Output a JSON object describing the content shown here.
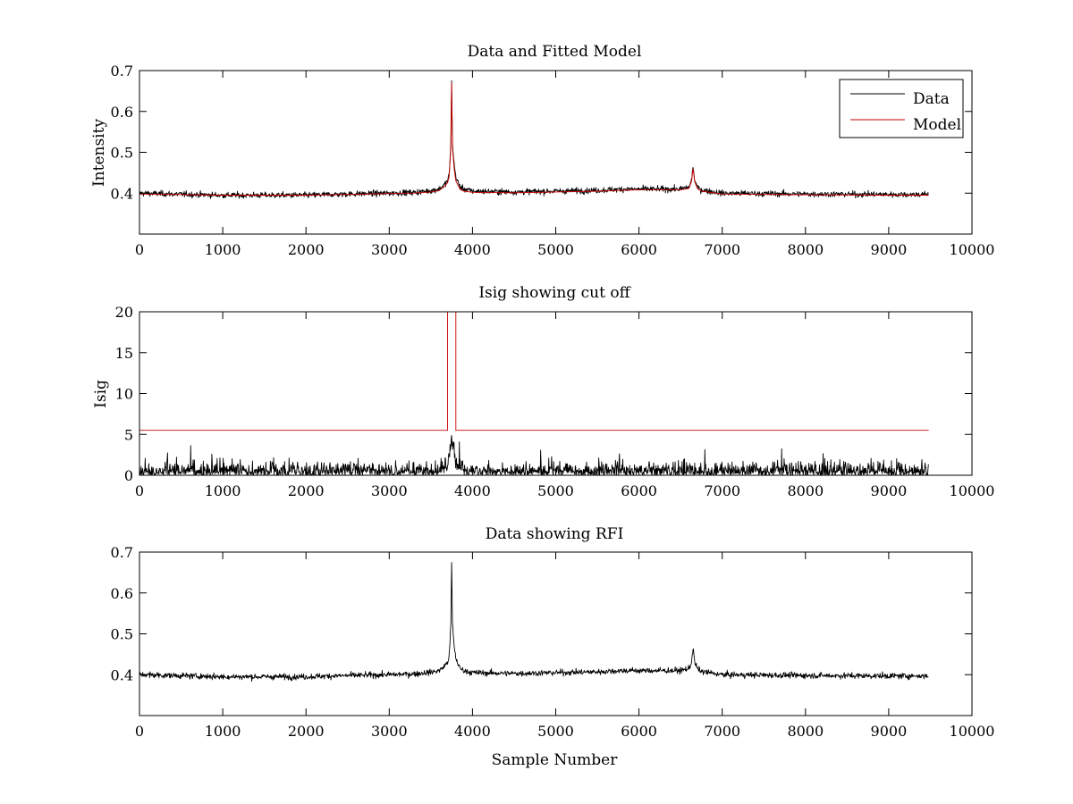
{
  "colors": {
    "data": "#000000",
    "model": "#cc0000",
    "background": "#ffffff"
  },
  "chart_data": [
    {
      "id": "top",
      "type": "line",
      "title": "Data and Fitted Model",
      "xlabel": "",
      "ylabel": "Intensity",
      "xlim": [
        0,
        10000
      ],
      "ylim": [
        0.3,
        0.7
      ],
      "x_ticks": [
        "0",
        "1000",
        "2000",
        "3000",
        "4000",
        "5000",
        "6000",
        "7000",
        "8000",
        "9000",
        "10000"
      ],
      "y_ticks": [
        "0.4",
        "0.5",
        "0.6",
        "0.7"
      ],
      "legend": {
        "position": "top-right",
        "entries": [
          "Data",
          "Model"
        ]
      },
      "series": [
        {
          "name": "Data",
          "color": "#000000",
          "noisy": true,
          "noise_amplitude": 0.006,
          "x": [
            0,
            1000,
            2000,
            2300,
            3000,
            3300,
            3500,
            3600,
            3650,
            3700,
            3720,
            3740,
            3750,
            3760,
            3780,
            3800,
            3850,
            3900,
            4000,
            4500,
            5000,
            5500,
            5800,
            6000,
            6300,
            6500,
            6600,
            6630,
            6650,
            6670,
            6700,
            6750,
            7000,
            8000,
            9000,
            9480
          ],
          "y": [
            0.4,
            0.395,
            0.395,
            0.397,
            0.4,
            0.402,
            0.406,
            0.41,
            0.418,
            0.43,
            0.445,
            0.52,
            0.68,
            0.52,
            0.47,
            0.44,
            0.415,
            0.41,
            0.405,
            0.403,
            0.405,
            0.407,
            0.41,
            0.41,
            0.41,
            0.41,
            0.415,
            0.43,
            0.465,
            0.43,
            0.415,
            0.408,
            0.4,
            0.398,
            0.397,
            0.397
          ]
        },
        {
          "name": "Model",
          "color": "#cc0000",
          "noisy": false,
          "x": [
            0,
            1000,
            2000,
            2300,
            3000,
            3300,
            3500,
            3600,
            3650,
            3700,
            3720,
            3740,
            3750,
            3760,
            3780,
            3800,
            3850,
            3900,
            4000,
            4500,
            5000,
            5500,
            5800,
            6000,
            6300,
            6500,
            6600,
            6630,
            6650,
            6670,
            6700,
            6750,
            7000,
            8000,
            9000,
            9480
          ],
          "y": [
            0.398,
            0.395,
            0.395,
            0.396,
            0.399,
            0.4,
            0.403,
            0.407,
            0.414,
            0.425,
            0.44,
            0.51,
            0.67,
            0.51,
            0.46,
            0.43,
            0.41,
            0.405,
            0.402,
            0.401,
            0.403,
            0.405,
            0.407,
            0.408,
            0.408,
            0.408,
            0.412,
            0.428,
            0.46,
            0.428,
            0.412,
            0.405,
            0.398,
            0.396,
            0.395,
            0.395
          ]
        }
      ]
    },
    {
      "id": "middle",
      "type": "line",
      "title": "Isig showing cut off",
      "xlabel": "",
      "ylabel": "Isig",
      "xlim": [
        0,
        10000
      ],
      "ylim": [
        0,
        20
      ],
      "x_ticks": [
        "0",
        "1000",
        "2000",
        "3000",
        "4000",
        "5000",
        "6000",
        "7000",
        "8000",
        "9000",
        "10000"
      ],
      "y_ticks": [
        "0",
        "5",
        "10",
        "15",
        "20"
      ],
      "series": [
        {
          "name": "Isig",
          "color": "#000000",
          "noisy": true,
          "noise_type": "abs",
          "noise_amplitude": 1.3,
          "x": [
            0,
            3600,
            3700,
            3740,
            3760,
            3800,
            3900,
            9480
          ],
          "y": [
            0,
            0,
            0.5,
            3.0,
            3.5,
            0.5,
            0,
            0
          ]
        },
        {
          "name": "Cut off",
          "color": "#cc0000",
          "noisy": false,
          "x": [
            0,
            3700,
            3700,
            3720,
            3780,
            3800,
            3800,
            9480
          ],
          "y": [
            5.5,
            5.5,
            20,
            20,
            20,
            20,
            5.5,
            5.5
          ]
        }
      ]
    },
    {
      "id": "bottom",
      "type": "line",
      "title": "Data showing RFI",
      "xlabel": "Sample Number",
      "ylabel": "",
      "xlim": [
        0,
        10000
      ],
      "ylim": [
        0.3,
        0.7
      ],
      "x_ticks": [
        "0",
        "1000",
        "2000",
        "3000",
        "4000",
        "5000",
        "6000",
        "7000",
        "8000",
        "9000",
        "10000"
      ],
      "y_ticks": [
        "0.4",
        "0.5",
        "0.6",
        "0.7"
      ],
      "series": [
        {
          "name": "Data",
          "color": "#000000",
          "noisy": true,
          "noise_amplitude": 0.006,
          "x": [
            0,
            1000,
            2000,
            2300,
            3000,
            3300,
            3500,
            3600,
            3650,
            3700,
            3720,
            3740,
            3750,
            3760,
            3780,
            3800,
            3850,
            3900,
            4000,
            4500,
            5000,
            5500,
            5800,
            6000,
            6300,
            6500,
            6600,
            6630,
            6650,
            6670,
            6700,
            6750,
            7000,
            8000,
            9000,
            9480
          ],
          "y": [
            0.4,
            0.395,
            0.395,
            0.397,
            0.4,
            0.402,
            0.406,
            0.41,
            0.418,
            0.43,
            0.445,
            0.52,
            0.68,
            0.52,
            0.47,
            0.44,
            0.415,
            0.41,
            0.405,
            0.403,
            0.405,
            0.407,
            0.41,
            0.41,
            0.41,
            0.41,
            0.415,
            0.43,
            0.465,
            0.43,
            0.415,
            0.408,
            0.4,
            0.398,
            0.397,
            0.397
          ]
        }
      ]
    }
  ]
}
